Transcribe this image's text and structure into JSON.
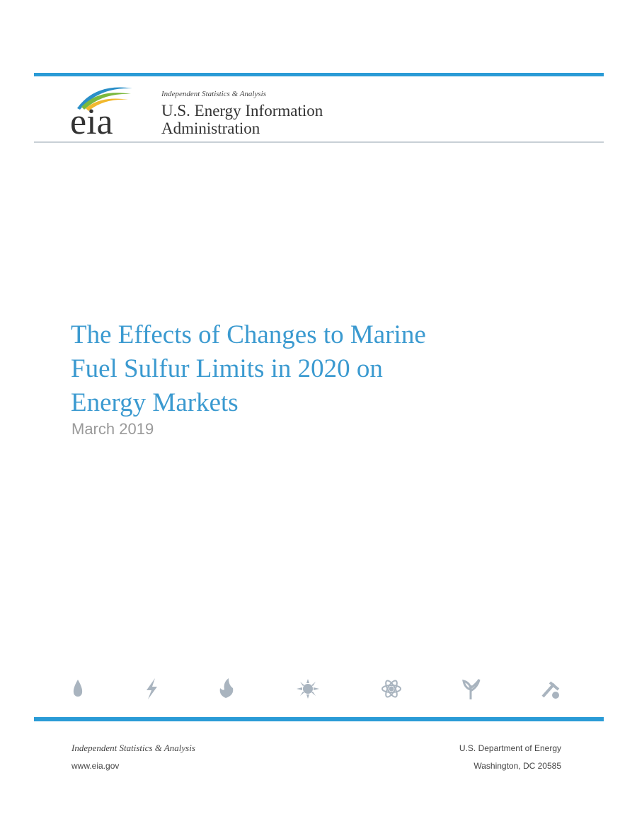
{
  "header": {
    "logo": "eia",
    "tagline": "Independent Statistics & Analysis",
    "org_line1": "U.S. Energy Information",
    "org_line2": "Administration"
  },
  "title": [
    "The Effects of Changes to Marine",
    "Fuel Sulfur Limits in 2020 on",
    "Energy Markets"
  ],
  "date": "March 2019",
  "footer": {
    "left": [
      "Independent Statistics & Analysis",
      "www.eia.gov"
    ],
    "right": [
      "U.S. Department of Energy",
      "Washington, DC 20585"
    ]
  }
}
